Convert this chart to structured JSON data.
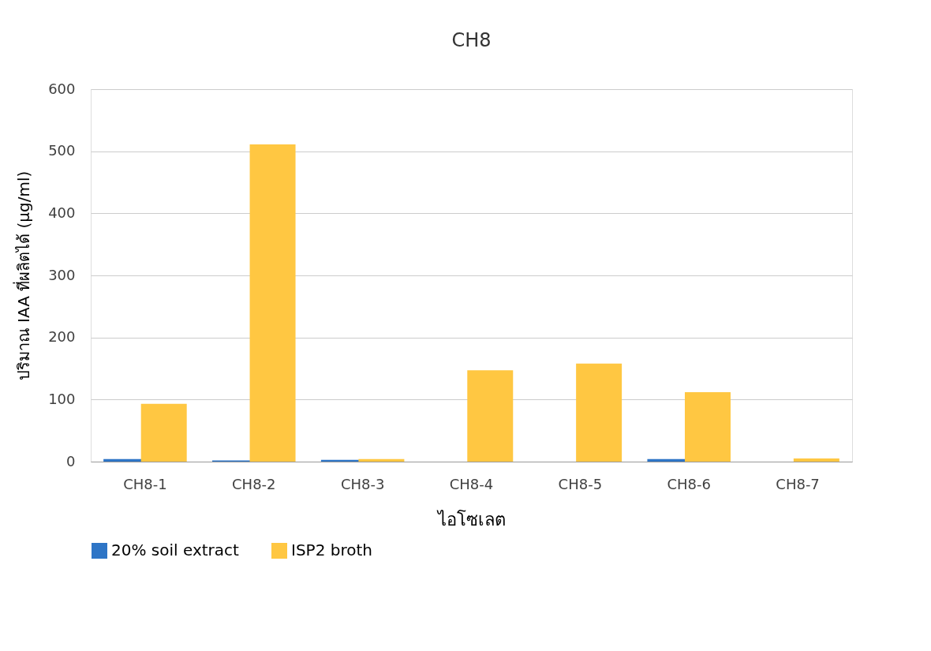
{
  "chart_data": {
    "type": "bar",
    "title": "CH8",
    "xlabel": "ไอโซเลต",
    "ylabel": "ปริมาณ IAA ที่ผลิตได้ (µg/ml)",
    "categories": [
      "CH8-1",
      "CH8-2",
      "CH8-3",
      "CH8-4",
      "CH8-5",
      "CH8-6",
      "CH8-7"
    ],
    "series": [
      {
        "name": "20% soil extract",
        "color": "#2e75c6",
        "values": [
          4,
          2,
          3,
          0,
          0,
          4,
          0
        ]
      },
      {
        "name": "ISP2 broth",
        "color": "#ffc742",
        "values": [
          93,
          511,
          4,
          147,
          158,
          112,
          5
        ]
      }
    ],
    "ylim": [
      0,
      600
    ],
    "yticks": [
      0,
      100,
      200,
      300,
      400,
      500,
      600
    ],
    "grid": "y",
    "legend": "bottom"
  }
}
